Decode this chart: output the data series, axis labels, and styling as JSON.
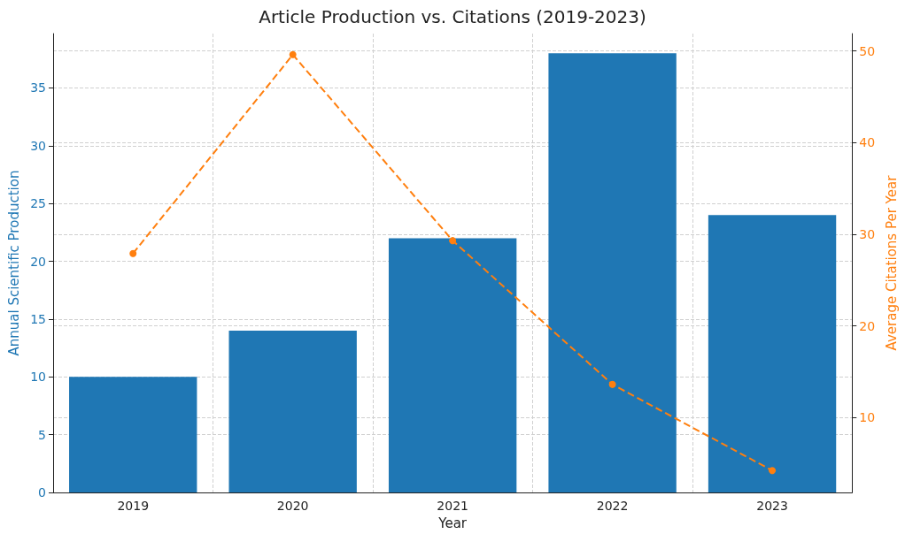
{
  "chart_data": {
    "type": "bar",
    "title": "Article Production vs. Citations (2019-2023)",
    "xlabel": "Year",
    "ylabel": "Annual Scientific Production",
    "y2label": "Average Citations Per Year",
    "categories": [
      "2019",
      "2020",
      "2021",
      "2022",
      "2023"
    ],
    "series": [
      {
        "color": "#1f77b4",
        "values": [
          10,
          14,
          22,
          38,
          24
        ]
      },
      {
        "type": "line",
        "axis": "y2",
        "color": "#ff7f0e",
        "marker": "circle",
        "line_style": "dashed",
        "values": [
          27.9,
          49.6,
          29.3,
          13.6,
          4.2
        ]
      }
    ],
    "ylim": [
      0,
      39.7
    ],
    "yticks": [
      0,
      5,
      10,
      15,
      20,
      25,
      30,
      35
    ],
    "y2lim": [
      1.8,
      51.9
    ],
    "y2ticks": [
      10,
      20,
      30,
      40,
      50
    ],
    "grid": true
  }
}
